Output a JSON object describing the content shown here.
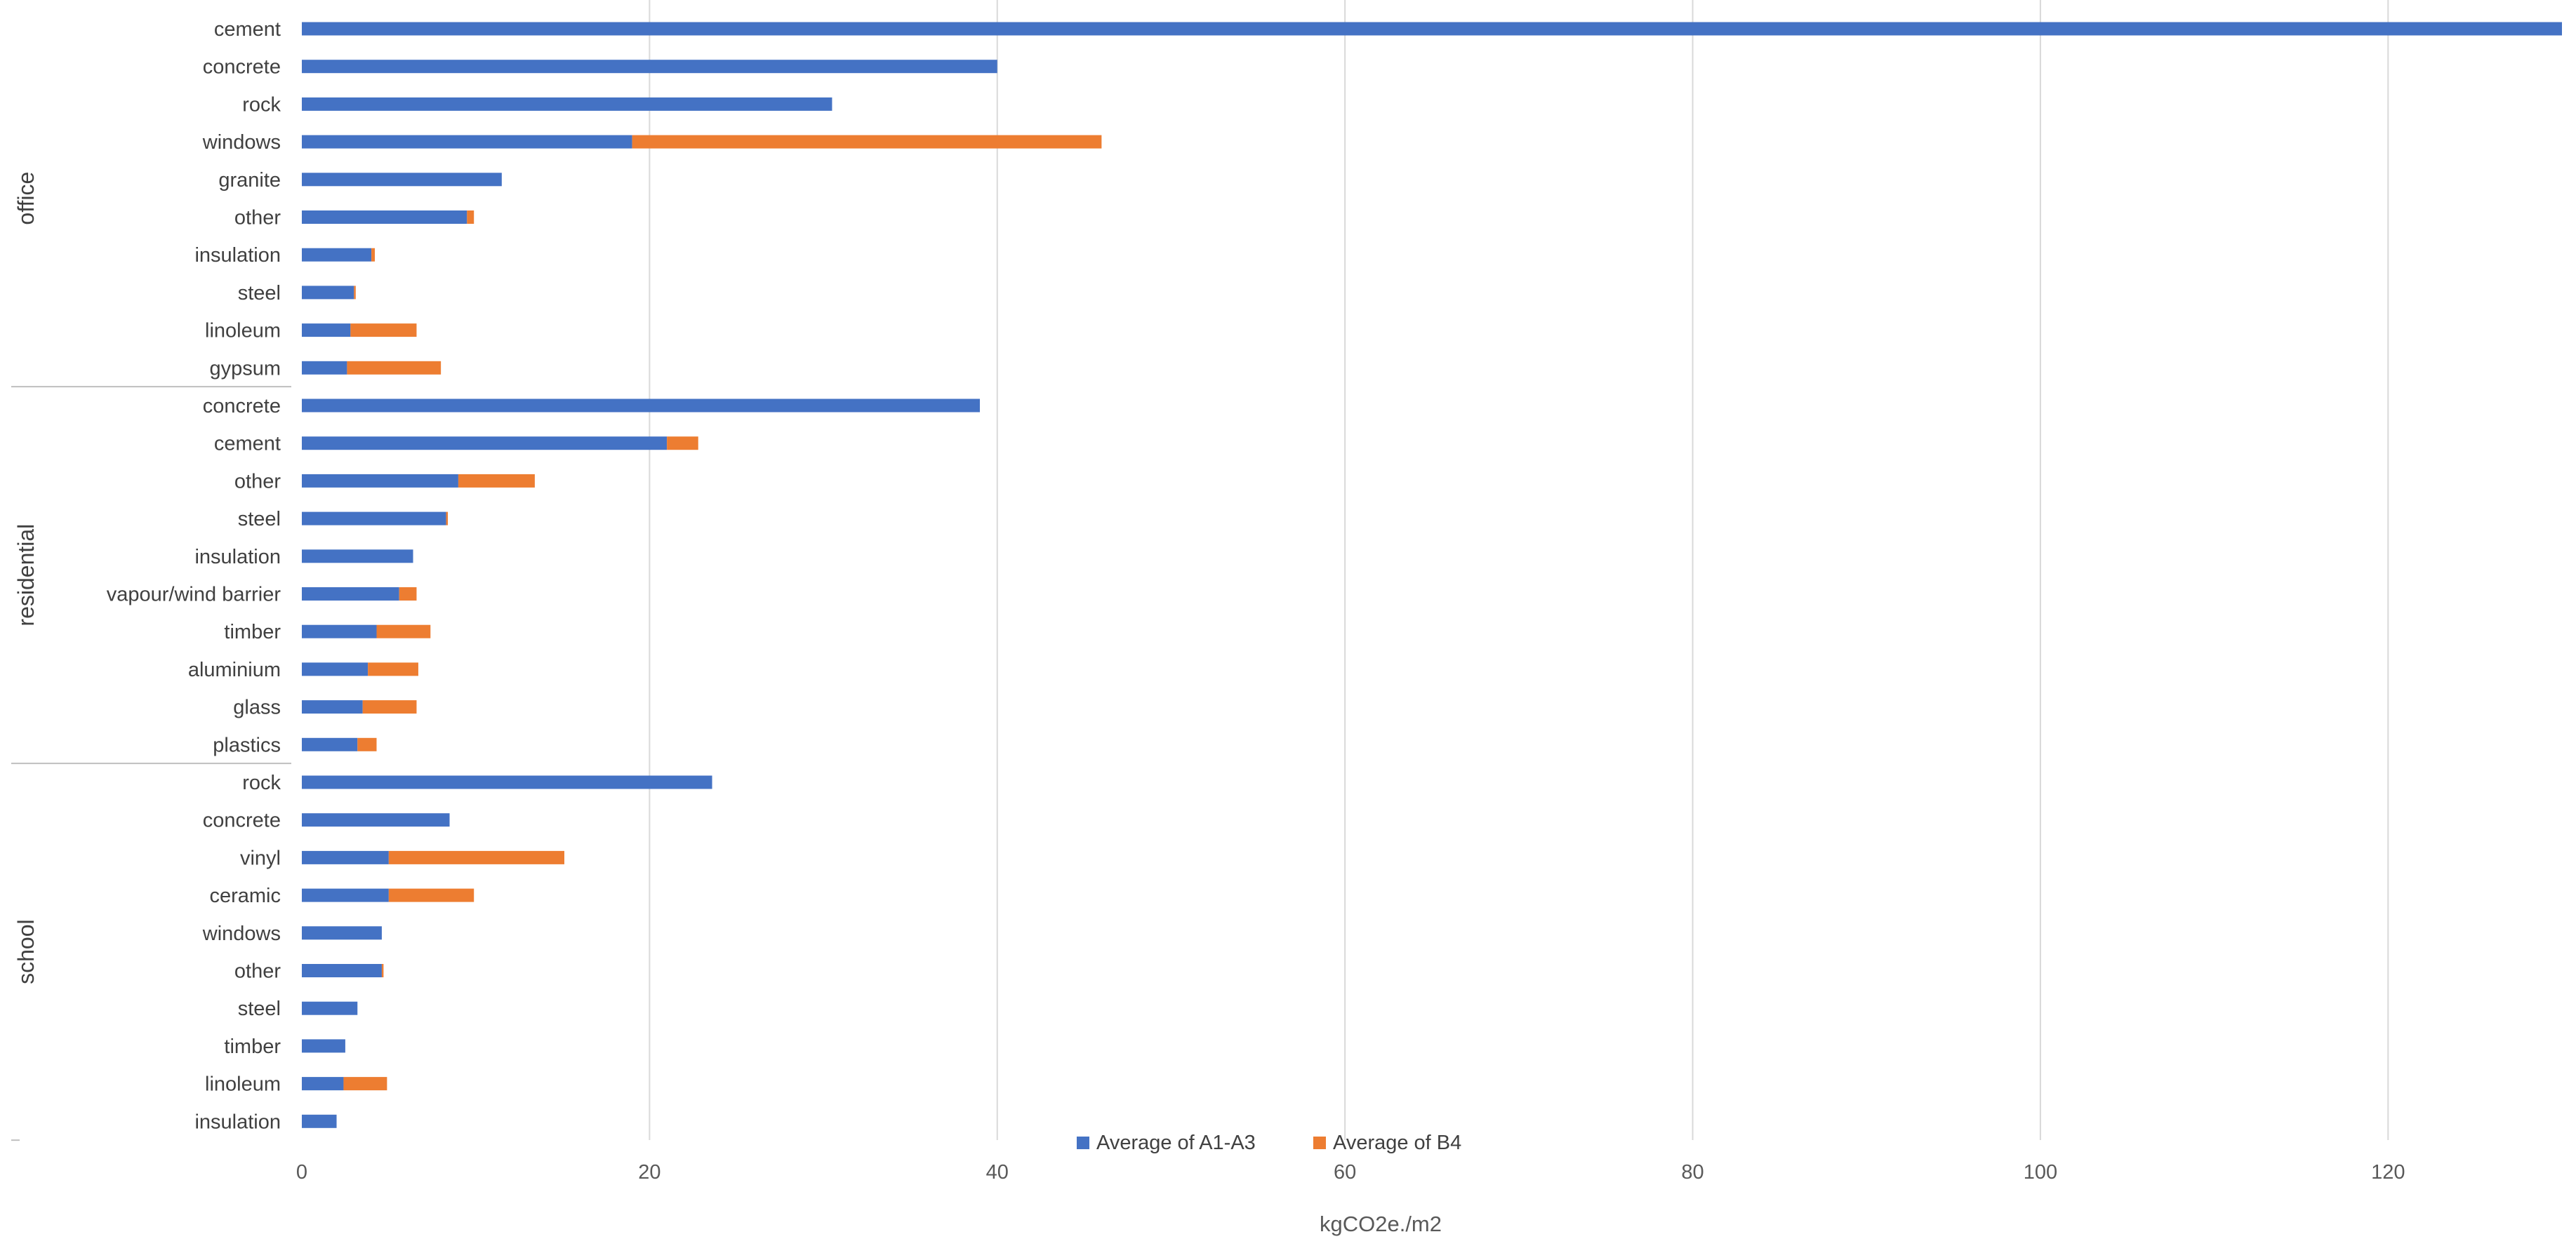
{
  "chart_data": {
    "type": "bar",
    "orientation": "horizontal",
    "stacked": true,
    "title": "",
    "xlabel": "kgCO2e./m2",
    "ylabel": "",
    "xlim": [
      0,
      130
    ],
    "x_ticks": [
      0,
      20,
      40,
      60,
      80,
      100,
      120
    ],
    "grid": true,
    "legend_position": "bottom",
    "colors": {
      "Average of A1-A3": "#4472c4",
      "Average of B4": "#ed7d31"
    },
    "series_names": [
      "Average of A1-A3",
      "Average of B4"
    ],
    "groups": [
      {
        "name": "office",
        "categories": [
          "cement",
          "concrete",
          "rock",
          "windows",
          "granite",
          "other",
          "insulation",
          "steel",
          "linoleum",
          "gypsum"
        ],
        "a1_a3": [
          130,
          40,
          30.5,
          19,
          11.5,
          9.5,
          4,
          3,
          2.8,
          2.6
        ],
        "b4": [
          0,
          0,
          0,
          27,
          0,
          0.4,
          0.2,
          0.1,
          3.8,
          5.4
        ]
      },
      {
        "name": "residential",
        "categories": [
          "concrete",
          "cement",
          "other",
          "steel",
          "insulation",
          "vapour/wind barrier",
          "timber",
          "aluminium",
          "glass",
          "plastics"
        ],
        "a1_a3": [
          39,
          21,
          9,
          8.3,
          6.4,
          5.6,
          4.3,
          3.8,
          3.5,
          3.2
        ],
        "b4": [
          0,
          1.8,
          4.4,
          0.1,
          0,
          1,
          3.1,
          2.9,
          3.1,
          1.1
        ]
      },
      {
        "name": "school",
        "categories": [
          "rock",
          "concrete",
          "vinyl",
          "ceramic",
          "windows",
          "other",
          "steel",
          "timber",
          "linoleum",
          "insulation"
        ],
        "a1_a3": [
          23.6,
          8.5,
          5,
          5,
          4.6,
          4.6,
          3.2,
          2.5,
          2.4,
          2
        ],
        "b4": [
          0,
          0,
          10.1,
          4.9,
          0,
          0.1,
          0,
          0,
          2.5,
          0
        ]
      }
    ]
  }
}
